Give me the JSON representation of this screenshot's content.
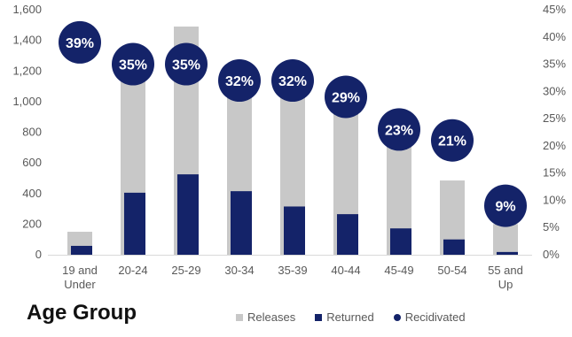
{
  "chart_data": {
    "type": "bar",
    "xlabel": "Age Group",
    "categories": [
      "19 and Under",
      "20-24",
      "25-29",
      "30-34",
      "35-39",
      "40-44",
      "45-49",
      "50-54",
      "55 and Up"
    ],
    "category_lines": [
      [
        "19 and",
        "Under"
      ],
      [
        "20-24"
      ],
      [
        "25-29"
      ],
      [
        "30-34"
      ],
      [
        "35-39"
      ],
      [
        "40-44"
      ],
      [
        "45-49"
      ],
      [
        "50-54"
      ],
      [
        "55 and",
        "Up"
      ]
    ],
    "series": [
      {
        "name": "Releases",
        "axis": "left",
        "color": "#c8c8c8",
        "values": [
          150,
          1300,
          1490,
          1250,
          1140,
          990,
          735,
          485,
          200
        ]
      },
      {
        "name": "Returned",
        "axis": "left",
        "color": "#142369",
        "values": [
          58,
          405,
          525,
          415,
          315,
          265,
          172,
          100,
          18
        ]
      },
      {
        "name": "Recidivated",
        "axis": "right",
        "color": "#142369",
        "values": [
          39,
          35,
          35,
          32,
          32,
          29,
          23,
          21,
          9
        ]
      }
    ],
    "point_labels": [
      "39%",
      "35%",
      "35%",
      "32%",
      "32%",
      "29%",
      "23%",
      "21%",
      "9%"
    ],
    "ylim_left": [
      0,
      1600
    ],
    "yticks_left": [
      "0",
      "200",
      "400",
      "600",
      "800",
      "1,000",
      "1,200",
      "1,400",
      "1,600"
    ],
    "ylim_right": [
      0,
      45
    ],
    "yticks_right": [
      "0%",
      "5%",
      "10%",
      "15%",
      "20%",
      "25%",
      "30%",
      "35%",
      "40%",
      "45%"
    ],
    "grid": false,
    "legend_position": "bottom-right"
  }
}
